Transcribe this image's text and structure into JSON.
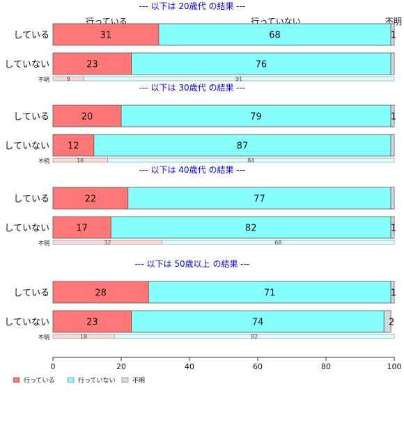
{
  "colors": {
    "did": "#ff7777",
    "did_not": "#88ffff",
    "unknown": "#d9d9d9",
    "title": "#0000ff",
    "bar_border": "#555555",
    "axis": "#333333"
  },
  "top_column_labels": [
    "行っている",
    "行っていない",
    "不明"
  ],
  "legend": [
    "行っている",
    "行っていない",
    "不明"
  ],
  "chart_data": {
    "type": "bar",
    "orientation": "horizontal",
    "stacked": true,
    "xlim": [
      0,
      100
    ],
    "x_ticks": [
      "0",
      "20",
      "40",
      "60",
      "80",
      "100"
    ],
    "series": [
      {
        "name": "行っている"
      },
      {
        "name": "行っていない"
      },
      {
        "name": "不明"
      }
    ],
    "panels": [
      {
        "title": "--- 以下は 20歳代 の結果 ---",
        "rows": [
          {
            "label": "している",
            "values": [
              31,
              68,
              1
            ],
            "labels": [
              "31",
              "68",
              "1"
            ]
          },
          {
            "label": "していない",
            "values": [
              23,
              76,
              1
            ],
            "labels": [
              "23",
              "76",
              ""
            ]
          }
        ],
        "unknown_row": {
          "label": "不明",
          "values": [
            9,
            91
          ],
          "labels": [
            "9",
            "91"
          ]
        }
      },
      {
        "title": "--- 以下は 30歳代 の結果 ---",
        "rows": [
          {
            "label": "している",
            "values": [
              20,
              79,
              1
            ],
            "labels": [
              "20",
              "79",
              "1"
            ]
          },
          {
            "label": "していない",
            "values": [
              12,
              87,
              1
            ],
            "labels": [
              "12",
              "87",
              ""
            ]
          }
        ],
        "unknown_row": {
          "label": "不明",
          "values": [
            16,
            84
          ],
          "labels": [
            "16",
            "84"
          ]
        }
      },
      {
        "title": "--- 以下は 40歳代 の結果 ---",
        "rows": [
          {
            "label": "している",
            "values": [
              22,
              77,
              1
            ],
            "labels": [
              "22",
              "77",
              ""
            ]
          },
          {
            "label": "していない",
            "values": [
              17,
              82,
              1
            ],
            "labels": [
              "17",
              "82",
              "1"
            ]
          }
        ],
        "unknown_row": {
          "label": "不明",
          "values": [
            32,
            68
          ],
          "labels": [
            "32",
            "68"
          ]
        }
      },
      {
        "title": "--- 以下は 50歳以上 の結果 ---",
        "rows": [
          {
            "label": "している",
            "values": [
              28,
              71,
              1
            ],
            "labels": [
              "28",
              "71",
              "1"
            ]
          },
          {
            "label": "していない",
            "values": [
              23,
              74,
              2
            ],
            "labels": [
              "23",
              "74",
              "2"
            ]
          }
        ],
        "unknown_row": {
          "label": "不明",
          "values": [
            18,
            82
          ],
          "labels": [
            "18",
            "82"
          ]
        }
      }
    ]
  }
}
